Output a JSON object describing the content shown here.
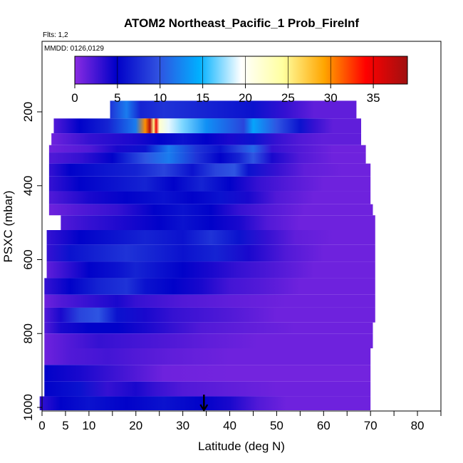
{
  "chart_data": {
    "type": "heatmap",
    "title": "ATOM2 Northeast_Pacific_1 Prob_FireInf",
    "flights_label": "Flts: 1,2",
    "dates_label": "MMDD: 0126,0129",
    "xlabel": "Latitude (deg N)",
    "ylabel": "PSXC (mbar)",
    "xlim": [
      0,
      85
    ],
    "ylim": [
      1000,
      0
    ],
    "x_ticks": [
      0,
      5,
      10,
      20,
      30,
      40,
      50,
      60,
      70,
      80
    ],
    "x_minor_ticks": [
      15,
      25,
      35,
      45,
      55,
      65,
      75,
      85
    ],
    "y_ticks": [
      200,
      400,
      600,
      800,
      1000
    ],
    "colorbar": {
      "range": [
        0,
        39
      ],
      "ticks": [
        0,
        5,
        10,
        15,
        20,
        25,
        30,
        35
      ],
      "colors": [
        "#8a2be2",
        "#0000c8",
        "#3050e0",
        "#00b0ff",
        "#ffffff",
        "#ffffa0",
        "#ffa500",
        "#ff0000",
        "#a01010"
      ]
    },
    "marker": {
      "latitude": 34.5,
      "pressure": 1000
    },
    "layers": [
      {
        "p_top": 170,
        "p_bot": 218,
        "lat_start": 14.5,
        "lat_end": 67,
        "segments": [
          [
            14.5,
            8
          ],
          [
            18,
            12
          ],
          [
            21,
            7
          ],
          [
            26,
            8
          ],
          [
            35,
            7
          ],
          [
            45,
            6
          ],
          [
            52,
            3
          ],
          [
            58,
            1.5
          ]
        ]
      },
      {
        "p_top": 218,
        "p_bot": 258,
        "lat_start": 2.5,
        "lat_end": 68,
        "segments": [
          [
            2.5,
            2
          ],
          [
            8,
            5
          ],
          [
            14,
            7
          ],
          [
            20,
            12
          ],
          [
            22,
            30
          ],
          [
            23,
            38
          ],
          [
            23.8,
            25
          ],
          [
            24.3,
            35
          ],
          [
            25,
            22
          ],
          [
            27,
            19
          ],
          [
            30,
            17
          ],
          [
            35,
            13
          ],
          [
            43,
            9
          ],
          [
            45,
            14
          ],
          [
            50,
            10
          ],
          [
            55,
            6
          ],
          [
            58,
            3
          ],
          [
            62,
            1.5
          ]
        ]
      },
      {
        "p_top": 258,
        "p_bot": 290,
        "lat_start": 2,
        "lat_end": 68,
        "segments": [
          [
            2,
            1
          ],
          [
            10,
            3
          ],
          [
            20,
            4
          ],
          [
            25,
            5
          ],
          [
            30,
            6
          ],
          [
            35,
            5
          ],
          [
            40,
            4
          ],
          [
            45,
            6
          ],
          [
            50,
            3
          ],
          [
            55,
            2
          ],
          [
            60,
            1.5
          ]
        ]
      },
      {
        "p_top": 290,
        "p_bot": 310,
        "lat_start": 1.5,
        "lat_end": 69,
        "segments": [
          [
            1.5,
            1
          ],
          [
            10,
            2
          ],
          [
            16,
            4
          ],
          [
            22,
            6
          ],
          [
            27,
            12
          ],
          [
            33,
            8
          ],
          [
            38,
            6
          ],
          [
            42,
            9
          ],
          [
            45,
            11
          ],
          [
            49,
            3
          ],
          [
            55,
            2
          ],
          [
            62,
            1
          ]
        ]
      },
      {
        "p_top": 310,
        "p_bot": 340,
        "lat_start": 1.5,
        "lat_end": 69,
        "segments": [
          [
            1.5,
            2
          ],
          [
            8,
            3
          ],
          [
            15,
            5
          ],
          [
            22,
            10
          ],
          [
            27,
            12
          ],
          [
            33,
            8
          ],
          [
            38,
            5
          ],
          [
            42,
            7
          ],
          [
            45,
            10
          ],
          [
            49,
            4
          ],
          [
            55,
            2
          ],
          [
            62,
            1
          ]
        ]
      },
      {
        "p_top": 340,
        "p_bot": 375,
        "lat_start": 1.5,
        "lat_end": 70,
        "segments": [
          [
            1.5,
            3
          ],
          [
            6,
            5
          ],
          [
            12,
            6
          ],
          [
            20,
            7
          ],
          [
            26,
            9
          ],
          [
            32,
            6
          ],
          [
            37,
            9
          ],
          [
            41,
            10
          ],
          [
            44,
            6
          ],
          [
            50,
            3
          ],
          [
            56,
            1.5
          ],
          [
            64,
            1
          ]
        ]
      },
      {
        "p_top": 375,
        "p_bot": 415,
        "lat_start": 1.5,
        "lat_end": 70,
        "segments": [
          [
            1.5,
            3
          ],
          [
            8,
            5
          ],
          [
            15,
            6
          ],
          [
            22,
            7
          ],
          [
            28,
            5
          ],
          [
            34,
            7
          ],
          [
            40,
            5
          ],
          [
            46,
            3
          ],
          [
            52,
            2
          ],
          [
            60,
            1
          ]
        ]
      },
      {
        "p_top": 415,
        "p_bot": 450,
        "lat_start": 1.5,
        "lat_end": 70,
        "segments": [
          [
            1.5,
            2
          ],
          [
            10,
            4
          ],
          [
            18,
            5
          ],
          [
            26,
            6
          ],
          [
            32,
            5
          ],
          [
            38,
            6
          ],
          [
            44,
            4
          ],
          [
            50,
            2
          ],
          [
            58,
            1
          ]
        ]
      },
      {
        "p_top": 450,
        "p_bot": 480,
        "lat_start": 1.5,
        "lat_end": 70.5,
        "segments": [
          [
            1.5,
            1
          ],
          [
            8,
            2
          ],
          [
            16,
            3
          ],
          [
            24,
            5
          ],
          [
            30,
            6
          ],
          [
            36,
            5
          ],
          [
            42,
            3
          ],
          [
            48,
            2
          ],
          [
            56,
            1
          ]
        ]
      },
      {
        "p_top": 480,
        "p_bot": 520,
        "lat_start": 4,
        "lat_end": 71,
        "segments": [
          [
            4,
            2
          ],
          [
            10,
            3
          ],
          [
            18,
            4
          ],
          [
            25,
            5
          ],
          [
            30,
            6
          ],
          [
            36,
            5
          ],
          [
            42,
            4
          ],
          [
            48,
            2
          ],
          [
            55,
            1
          ]
        ]
      },
      {
        "p_top": 520,
        "p_bot": 560,
        "lat_start": 1,
        "lat_end": 71,
        "segments": [
          [
            1,
            3
          ],
          [
            8,
            5
          ],
          [
            15,
            6
          ],
          [
            22,
            7
          ],
          [
            30,
            6
          ],
          [
            36,
            8
          ],
          [
            42,
            6
          ],
          [
            48,
            3
          ],
          [
            54,
            1.5
          ],
          [
            62,
            1
          ]
        ]
      },
      {
        "p_top": 560,
        "p_bot": 605,
        "lat_start": 1,
        "lat_end": 71,
        "segments": [
          [
            1,
            3
          ],
          [
            6,
            6
          ],
          [
            12,
            7
          ],
          [
            18,
            8
          ],
          [
            24,
            7
          ],
          [
            30,
            6
          ],
          [
            37,
            7
          ],
          [
            44,
            4
          ],
          [
            52,
            2
          ],
          [
            60,
            1
          ]
        ]
      },
      {
        "p_top": 605,
        "p_bot": 650,
        "lat_start": 1,
        "lat_end": 71,
        "segments": [
          [
            1,
            1.5
          ],
          [
            5,
            3
          ],
          [
            10,
            5
          ],
          [
            16,
            6
          ],
          [
            20,
            7
          ],
          [
            25,
            6
          ],
          [
            30,
            5
          ],
          [
            36,
            4
          ],
          [
            42,
            3
          ],
          [
            50,
            2
          ],
          [
            58,
            1
          ]
        ]
      },
      {
        "p_top": 650,
        "p_bot": 695,
        "lat_start": 0.5,
        "lat_end": 71,
        "segments": [
          [
            0.5,
            3
          ],
          [
            6,
            5
          ],
          [
            12,
            7
          ],
          [
            18,
            8
          ],
          [
            22,
            6
          ],
          [
            28,
            5
          ],
          [
            34,
            4
          ],
          [
            40,
            2.5
          ],
          [
            46,
            2
          ],
          [
            55,
            1
          ]
        ]
      },
      {
        "p_top": 695,
        "p_bot": 730,
        "lat_start": 0.5,
        "lat_end": 71,
        "segments": [
          [
            0.5,
            1
          ],
          [
            4,
            2
          ],
          [
            10,
            3
          ],
          [
            16,
            4
          ],
          [
            20,
            3
          ],
          [
            30,
            2
          ],
          [
            40,
            1.5
          ],
          [
            52,
            1
          ]
        ]
      },
      {
        "p_top": 730,
        "p_bot": 770,
        "lat_start": 0.5,
        "lat_end": 71,
        "segments": [
          [
            0.5,
            2
          ],
          [
            4,
            4
          ],
          [
            8,
            9
          ],
          [
            12,
            10
          ],
          [
            16,
            6
          ],
          [
            22,
            4
          ],
          [
            28,
            3
          ],
          [
            34,
            2.5
          ],
          [
            40,
            2
          ],
          [
            50,
            1
          ]
        ]
      },
      {
        "p_top": 770,
        "p_bot": 800,
        "lat_start": 0.5,
        "lat_end": 70.5,
        "segments": [
          [
            0.5,
            2
          ],
          [
            4,
            4
          ],
          [
            10,
            5
          ],
          [
            16,
            5
          ],
          [
            22,
            4
          ],
          [
            28,
            3
          ],
          [
            34,
            2
          ],
          [
            44,
            1.5
          ],
          [
            54,
            1
          ]
        ]
      },
      {
        "p_top": 800,
        "p_bot": 840,
        "lat_start": 0.5,
        "lat_end": 70.5,
        "segments": [
          [
            0.5,
            1
          ],
          [
            6,
            2
          ],
          [
            12,
            3
          ],
          [
            20,
            2.5
          ],
          [
            28,
            2
          ],
          [
            36,
            1.5
          ],
          [
            46,
            1
          ]
        ]
      },
      {
        "p_top": 840,
        "p_bot": 885,
        "lat_start": 0.5,
        "lat_end": 70,
        "segments": [
          [
            0.5,
            1
          ],
          [
            6,
            2
          ],
          [
            14,
            2.5
          ],
          [
            20,
            2
          ],
          [
            28,
            1.5
          ],
          [
            40,
            1
          ]
        ]
      },
      {
        "p_top": 885,
        "p_bot": 930,
        "lat_start": 0.5,
        "lat_end": 70,
        "segments": [
          [
            0.5,
            5
          ],
          [
            8,
            4
          ],
          [
            14,
            3
          ],
          [
            20,
            2
          ],
          [
            26,
            1
          ],
          [
            40,
            0.8
          ]
        ]
      },
      {
        "p_top": 930,
        "p_bot": 970,
        "lat_start": 0.5,
        "lat_end": 70,
        "segments": [
          [
            0.5,
            5
          ],
          [
            8,
            6
          ],
          [
            14,
            3
          ],
          [
            20,
            4
          ],
          [
            24,
            3
          ],
          [
            30,
            2
          ],
          [
            40,
            1.5
          ],
          [
            50,
            1
          ]
        ]
      },
      {
        "p_top": 970,
        "p_bot": 1010,
        "lat_start": -0.5,
        "lat_end": 70,
        "segments": [
          [
            -0.5,
            3
          ],
          [
            4,
            5
          ],
          [
            10,
            6
          ],
          [
            18,
            5
          ],
          [
            26,
            6
          ],
          [
            34,
            5
          ],
          [
            40,
            4
          ],
          [
            46,
            2
          ],
          [
            52,
            1
          ]
        ]
      }
    ]
  }
}
